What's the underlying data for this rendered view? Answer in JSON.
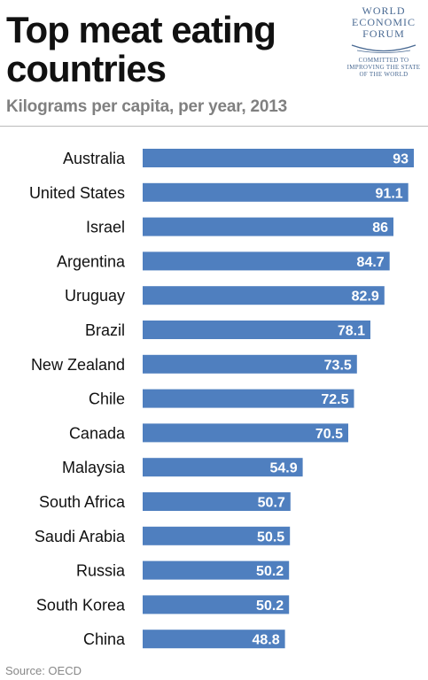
{
  "title": "Top meat eating countries",
  "subtitle": "Kilograms per capita, per year, 2013",
  "logo": {
    "name_line1": "WORLD",
    "name_line2": "ECONOMIC",
    "name_line3": "FORUM",
    "tagline_line1": "COMMITTED TO",
    "tagline_line2": "IMPROVING THE STATE",
    "tagline_line3": "OF THE WORLD"
  },
  "source": "Source: OECD",
  "colors": {
    "bar": "#4f7fbf",
    "value_label": "#ffffff",
    "category_label": "#111111"
  },
  "chart_data": {
    "type": "bar",
    "orientation": "horizontal",
    "categories": [
      "Australia",
      "United States",
      "Israel",
      "Argentina",
      "Uruguay",
      "Brazil",
      "New Zealand",
      "Chile",
      "Canada",
      "Malaysia",
      "South Africa",
      "Saudi Arabia",
      "Russia",
      "South Korea",
      "China"
    ],
    "values": [
      93,
      91.1,
      86,
      84.7,
      82.9,
      78.1,
      73.5,
      72.5,
      70.5,
      54.9,
      50.7,
      50.5,
      50.2,
      50.2,
      48.8
    ],
    "value_labels": [
      "93",
      "91.1",
      "86",
      "84.7",
      "82.9",
      "78.1",
      "73.5",
      "72.5",
      "70.5",
      "54.9",
      "50.7",
      "50.5",
      "50.2",
      "50.2",
      "48.8"
    ],
    "title": "Top meat eating countries",
    "subtitle": "Kilograms per capita, per year, 2013",
    "xlim": [
      0,
      93
    ],
    "grid": false,
    "legend": "none"
  }
}
